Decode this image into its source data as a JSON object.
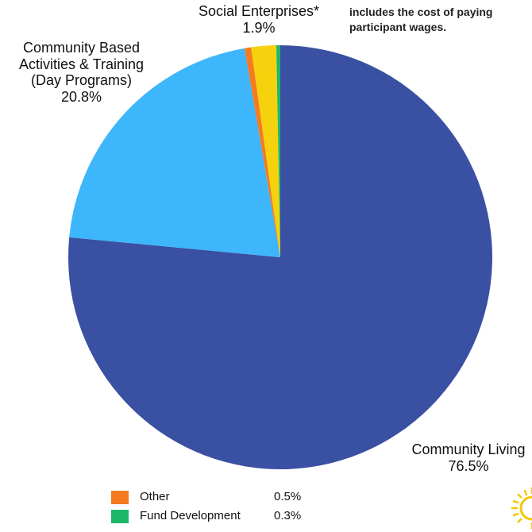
{
  "chart_data": {
    "type": "pie",
    "slices": [
      {
        "label": "Community Living",
        "value": 76.5,
        "display": "76.5%",
        "color": "#3A50A2"
      },
      {
        "label": "Community Based Activities & Training (Day Programs)",
        "value": 20.8,
        "display": "20.8%",
        "color": "#3DB6FB"
      },
      {
        "label": "Other",
        "value": 0.5,
        "display": "0.5%",
        "color": "#F47B20"
      },
      {
        "label": "Social Enterprises*",
        "value": 1.9,
        "display": "1.9%",
        "color": "#F5D20D"
      },
      {
        "label": "Fund Development",
        "value": 0.3,
        "display": "0.3%",
        "color": "#1CB86A"
      }
    ],
    "start_angle_deg": 0,
    "direction": "clockwise",
    "labels": {
      "community_based_line1": "Community Based",
      "community_based_line2": "Activities & Training",
      "community_based_line3": "(Day Programs)",
      "community_based_pct": "20.8%",
      "social_enterprises": "Social Enterprises*",
      "social_enterprises_pct": "1.9%",
      "community_living": "Community Living",
      "community_living_pct": "76.5%"
    },
    "footnote_line1": "includes the cost of paying",
    "footnote_line2": "participant wages.",
    "legend": [
      {
        "label": "Other",
        "value": "0.5%",
        "color": "#F47B20"
      },
      {
        "label": "Fund Development",
        "value": "0.3%",
        "color": "#1CB86A"
      }
    ]
  }
}
